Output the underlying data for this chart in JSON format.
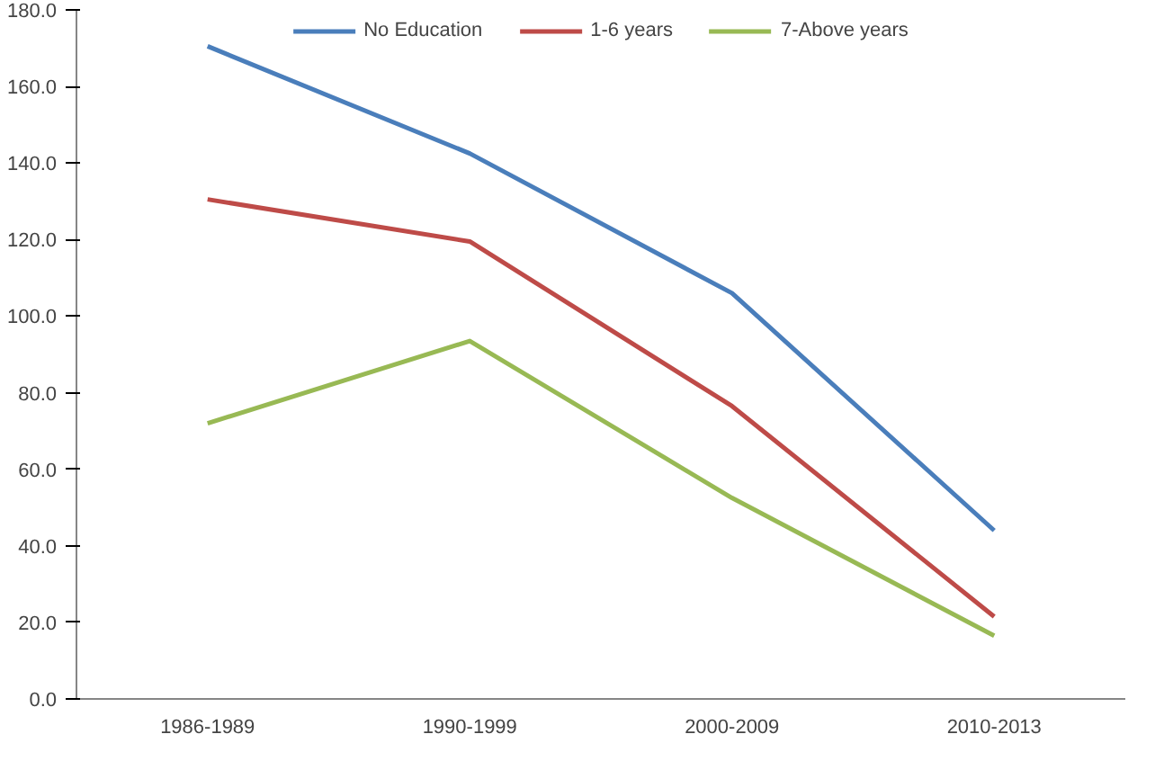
{
  "chart_data": {
    "type": "line",
    "categories": [
      "1986-1989",
      "1990-1999",
      "2000-2009",
      "2010-2013"
    ],
    "series": [
      {
        "name": "No Education",
        "color": "#4a7ebb",
        "values": [
          170.5,
          142.5,
          106.0,
          44.0
        ]
      },
      {
        "name": "1-6 years",
        "color": "#be4b48",
        "values": [
          130.5,
          119.5,
          76.5,
          21.5
        ]
      },
      {
        "name": "7-Above years",
        "color": "#98b954",
        "values": [
          72.0,
          93.5,
          52.5,
          16.5
        ]
      }
    ],
    "ylim": [
      0,
      180
    ],
    "yticks": [
      {
        "value": 0,
        "label": "0.0"
      },
      {
        "value": 20,
        "label": "20.0"
      },
      {
        "value": 40,
        "label": "40.0"
      },
      {
        "value": 60,
        "label": "60.0"
      },
      {
        "value": 80,
        "label": "80.0"
      },
      {
        "value": 100,
        "label": "100.0"
      },
      {
        "value": 120,
        "label": "120.0"
      },
      {
        "value": 140,
        "label": "140.0"
      },
      {
        "value": 160,
        "label": "160.0"
      },
      {
        "value": 180,
        "label": "180.0"
      }
    ],
    "grid": false,
    "legend": "top",
    "marker": "none",
    "line_style": "solid"
  }
}
